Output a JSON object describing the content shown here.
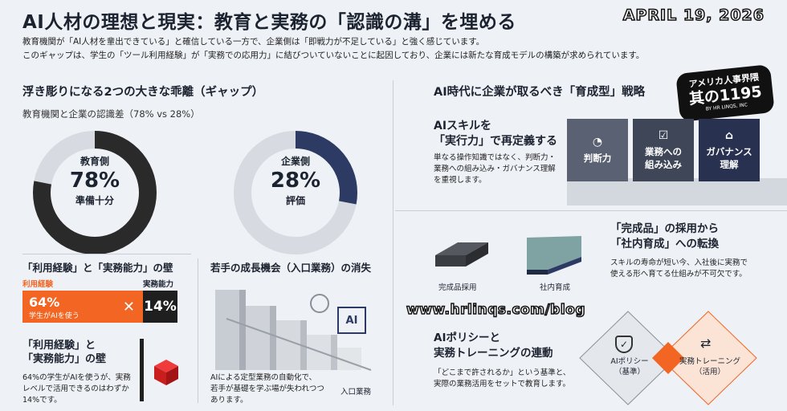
{
  "header": {
    "title": "AI人材の理想と現実：教育と実務の「認識の溝」を埋める",
    "date": "APRIL 19, 2026",
    "intro_line1": "教育機関が「AI人材を輩出できている」と確信している一方で、企業側は「即戦力が不足している」と強く感じています。",
    "intro_line2": "このギャップは、学生の「ツール利用経験」が「実務での応用力」に結びついていないことに起因しており、企業には新たな育成モデルの構築が求められています。"
  },
  "left": {
    "heading": "浮き彫りになる2つの大きな乖離（ギャップ）",
    "subheading": "教育機関と企業の認識差（78% vs 28%）",
    "donut_edu": {
      "label": "教育側",
      "value": "78%",
      "caption": "準備十分",
      "fraction": 0.78,
      "color": "#2a2a2a"
    },
    "donut_biz": {
      "label": "企業側",
      "value": "28%",
      "caption": "評価",
      "fraction": 0.28,
      "color": "#2c3a64"
    },
    "wall_heading": "「利用経験」と「実務能力」の壁",
    "bar_left_label": "利用経験",
    "bar_right_label": "実務能力",
    "bar_left_value": "64%",
    "bar_left_caption": "学生がAIを使う",
    "bar_right_value": "14%",
    "wall_heading2_line1": "「利用経験」と",
    "wall_heading2_line2": "「実務能力」の壁",
    "wall_text_line1": "64%の学生がAIを使うが、実務",
    "wall_text_line2": "レベルで活用できるのはわずか",
    "wall_text_line3": "14%です。",
    "growth_heading": "若手の成長機会（入口業務）の消失",
    "growth_text_line1": "AIによる定型業務の自動化で、",
    "growth_text_line2": "若手が基礎を学ぶ場が失われつつ",
    "growth_text_line3": "あります。",
    "growth_entry": "入口業務",
    "ai_chip": "AI"
  },
  "right": {
    "heading": "AI時代に企業が取るべき「育成型」戦略",
    "s1_title_line1": "AIスキルを",
    "s1_title_line2": "「実行力」で再定義する",
    "s1_text_line1": "単なる操作知識ではなく、判断力・",
    "s1_text_line2": "業務への組み込み・ガバナンス理解",
    "s1_text_line3": "を重視します。",
    "boxes": [
      {
        "label": "判断力",
        "icon": "pie-chart-icon",
        "color": "#5a6172"
      },
      {
        "label": "業務への\n組み込み",
        "icon": "document-check-icon",
        "color": "#3f4658"
      },
      {
        "label": "ガバナンス\n理解",
        "icon": "bank-icon",
        "color": "#283150"
      }
    ],
    "s2_title_line1": "「完成品」の採用から",
    "s2_title_line2": "「社内育成」への転換",
    "s2_text_line1": "スキルの寿命が短い今、入社後に実務で",
    "s2_text_line2": "使える形へ育てる仕組みが不可欠です。",
    "s2_label_a": "完成品採用",
    "s2_label_b": "社内育成",
    "s3_title_line1": "AIポリシーと",
    "s3_title_line2": "実務トレーニングの連動",
    "s3_text_line1": "「どこまで許されるか」という基準と、",
    "s3_text_line2": "実際の業務活用をセットで教育します。",
    "diamond_a_line1": "AIポリシー",
    "diamond_a_line2": "（基準）",
    "diamond_b_line1": "実務トレーニング",
    "diamond_b_line2": "（活用）"
  },
  "overlay": {
    "url": "www.hrlinqs.com/blog",
    "stamp_line1": "アメリカ人事界隈",
    "stamp_line2": "其の1195",
    "stamp_line3": "BY HR LINQS, INC"
  },
  "colors": {
    "accent": "#f26522",
    "navy": "#2c3a64",
    "dark": "#1f1f1f",
    "teal": "#7fa3a3"
  }
}
